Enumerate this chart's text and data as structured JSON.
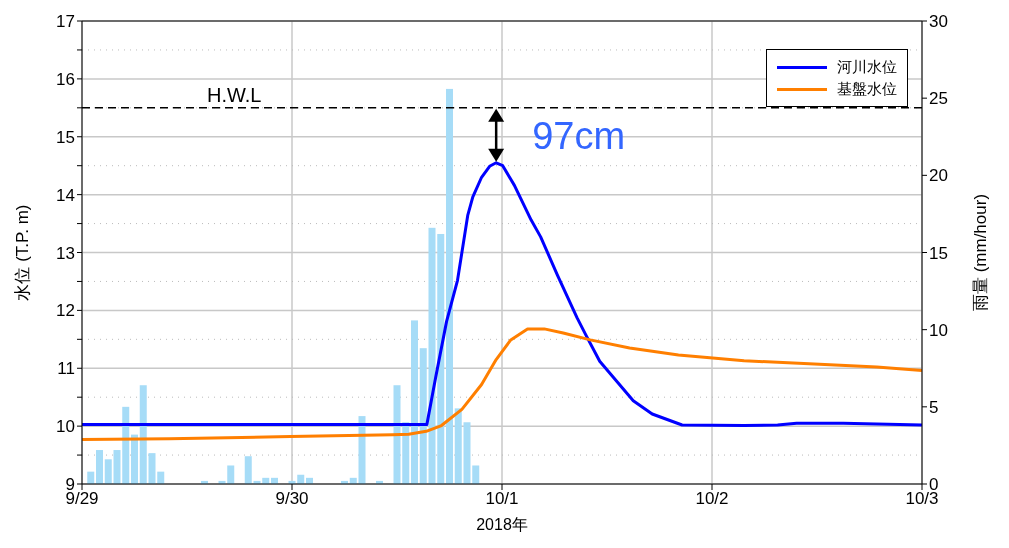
{
  "chart_data": {
    "type": "line",
    "xlabel": "2018年",
    "ylabel": "水位 (T.P. m)",
    "y2label": "雨量 (mm/hour)",
    "xlim": [
      "2018-09-29T00:00",
      "2018-10-03T00:00"
    ],
    "xticks": [
      {
        "value": "2018-09-29",
        "label": "9/29"
      },
      {
        "value": "2018-09-30",
        "label": "9/30"
      },
      {
        "value": "2018-10-01",
        "label": "10/1"
      },
      {
        "value": "2018-10-02",
        "label": "10/2"
      },
      {
        "value": "2018-10-03",
        "label": "10/3"
      }
    ],
    "ylim": [
      9,
      17
    ],
    "yticks": [
      9,
      {
        "value": 9.5,
        "label": null
      },
      10,
      {
        "value": 10.5,
        "label": null
      },
      11,
      {
        "value": 11.5,
        "label": null
      },
      12,
      {
        "value": 12.5,
        "label": null
      },
      13,
      {
        "value": 13.5,
        "label": null
      },
      14,
      {
        "value": 14.5,
        "label": null
      },
      15,
      {
        "value": 15.5,
        "label": null
      },
      16,
      {
        "value": 16.5,
        "label": null
      },
      17
    ],
    "y2lim": [
      0,
      30
    ],
    "y2ticks": [
      0,
      5,
      10,
      15,
      20,
      25,
      30
    ],
    "grid": true,
    "legend": "top right",
    "marker": "none",
    "line_style": "solid",
    "ref_lines": [
      {
        "axis": "y",
        "value": 15.5,
        "label": "H.W.L",
        "color": "#000000",
        "line_style": "dashed"
      }
    ],
    "annotations": [
      {
        "text": "97cm",
        "x": "2018-09-30T23:20",
        "y": 14.55
      }
    ],
    "series": [
      {
        "type": "bar",
        "axis": "y2",
        "color": "#a6dcf7",
        "x": [
          "2018-09-29T01:00",
          "2018-09-29T02:00",
          "2018-09-29T03:00",
          "2018-09-29T04:00",
          "2018-09-29T05:00",
          "2018-09-29T06:00",
          "2018-09-29T07:00",
          "2018-09-29T08:00",
          "2018-09-29T09:00",
          "2018-09-29T14:00",
          "2018-09-29T16:00",
          "2018-09-29T17:00",
          "2018-09-29T19:00",
          "2018-09-29T20:00",
          "2018-09-29T21:00",
          "2018-09-29T22:00",
          "2018-09-30T00:00",
          "2018-09-30T01:00",
          "2018-09-30T02:00",
          "2018-09-30T06:00",
          "2018-09-30T07:00",
          "2018-09-30T08:00",
          "2018-09-30T10:00",
          "2018-09-30T12:00",
          "2018-09-30T13:00",
          "2018-09-30T14:00",
          "2018-09-30T15:00",
          "2018-09-30T16:00",
          "2018-09-30T17:00",
          "2018-09-30T18:00",
          "2018-09-30T19:00",
          "2018-09-30T20:00",
          "2018-09-30T21:00"
        ],
        "values": [
          0.8,
          2.2,
          1.6,
          2.2,
          5.0,
          3.2,
          6.4,
          2.0,
          0.8,
          0.2,
          0.2,
          1.2,
          1.8,
          0.2,
          0.4,
          0.4,
          0.2,
          0.6,
          0.4,
          0.2,
          0.4,
          4.4,
          0.2,
          6.4,
          4.0,
          10.6,
          8.8,
          16.6,
          16.2,
          25.6,
          4.9,
          4.0,
          1.2
        ]
      },
      {
        "name": "河川水位",
        "color": "#0000ff",
        "x": [
          "2018-09-29T00:00",
          "2018-09-30T15:25",
          "2018-09-30T16:25",
          "2018-09-30T17:40",
          "2018-09-30T18:55",
          "2018-09-30T20:05",
          "2018-09-30T20:40",
          "2018-09-30T21:40",
          "2018-09-30T22:35",
          "2018-09-30T23:20",
          "2018-10-01T00:05",
          "2018-10-01T01:25",
          "2018-10-01T03:20",
          "2018-10-01T04:25",
          "2018-10-01T06:20",
          "2018-10-01T08:35",
          "2018-10-01T09:40",
          "2018-10-01T11:10",
          "2018-10-01T13:05",
          "2018-10-01T15:00",
          "2018-10-01T17:10",
          "2018-10-01T20:35",
          "2018-10-02T03:40",
          "2018-10-02T07:30",
          "2018-10-02T09:40",
          "2018-10-02T15:00",
          "2018-10-03T00:00"
        ],
        "values": [
          10.03,
          10.03,
          10.84,
          11.81,
          12.52,
          13.64,
          13.96,
          14.3,
          14.49,
          14.55,
          14.5,
          14.16,
          13.56,
          13.27,
          12.61,
          11.87,
          11.55,
          11.12,
          10.78,
          10.44,
          10.21,
          10.02,
          10.01,
          10.02,
          10.05,
          10.05,
          10.02
        ]
      },
      {
        "name": "基盤水位",
        "color": "#ff7f00",
        "x": [
          "2018-09-29T00:00",
          "2018-09-29T10:00",
          "2018-09-29T23:50",
          "2018-09-30T11:30",
          "2018-09-30T13:20",
          "2018-09-30T15:20",
          "2018-09-30T17:05",
          "2018-09-30T19:25",
          "2018-09-30T21:40",
          "2018-09-30T23:20",
          "2018-10-01T01:00",
          "2018-10-01T02:55",
          "2018-10-01T04:50",
          "2018-10-01T07:00",
          "2018-10-01T10:05",
          "2018-10-01T14:35",
          "2018-10-01T20:10",
          "2018-10-02T03:40",
          "2018-10-02T10:30",
          "2018-10-02T18:50",
          "2018-10-03T00:00"
        ],
        "values": [
          9.77,
          9.78,
          9.82,
          9.85,
          9.86,
          9.91,
          10.01,
          10.29,
          10.72,
          11.15,
          11.49,
          11.68,
          11.68,
          11.61,
          11.49,
          11.35,
          11.23,
          11.13,
          11.08,
          11.02,
          10.96
        ]
      }
    ]
  }
}
